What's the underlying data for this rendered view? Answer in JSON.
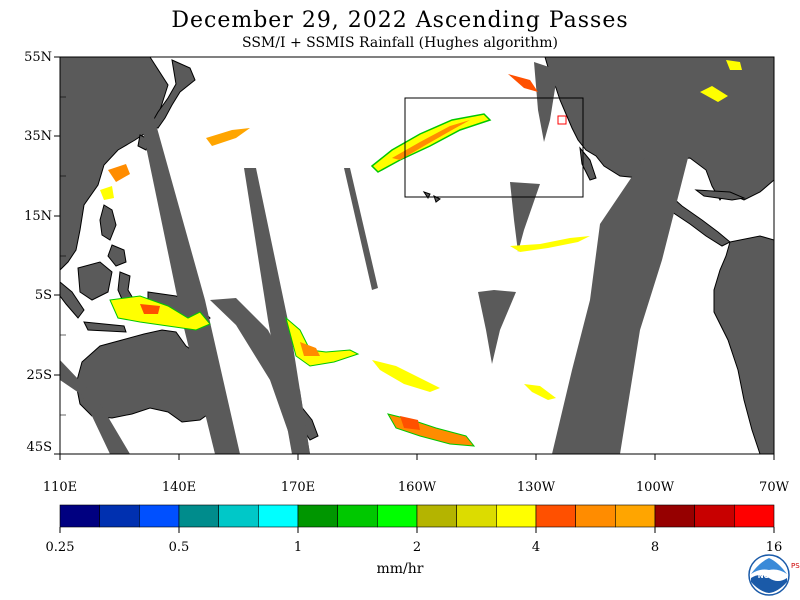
{
  "title": "December 29, 2022  Ascending Passes",
  "subtitle": "SSM/I + SSMIS Rainfall (Hughes algorithm)",
  "lat_labels": [
    "55N",
    "35N",
    "15N",
    "5S",
    "25S",
    "45S"
  ],
  "lon_labels": [
    "110E",
    "140E",
    "170E",
    "160W",
    "130W",
    "100W",
    "70W"
  ],
  "colorbar": {
    "colors": [
      "#000080",
      "#0030b0",
      "#0050ff",
      "#008c8c",
      "#00c8c8",
      "#00ffff",
      "#009600",
      "#00c800",
      "#00ff00",
      "#b4b400",
      "#dcdc00",
      "#ffff00",
      "#ff5000",
      "#ff8c00",
      "#ffa500",
      "#960000",
      "#c80000",
      "#ff0000"
    ],
    "tick_labels": [
      "0.25",
      "0.5",
      "1",
      "2",
      "4",
      "8",
      "16"
    ],
    "units": "mm/hr"
  },
  "colors": {
    "land": "#5a5a5a",
    "no_data": "#5a5a5a",
    "ocean": "#ffffff",
    "coast": "#000000"
  },
  "logo": {
    "text": "NOAA",
    "side_text": "PSL"
  },
  "map_elements": {
    "highlight_box": "northeast-pacific-atmospheric-river",
    "rain_areas": [
      "atmospheric-river",
      "western-pacific",
      "south-pacific",
      "itcz"
    ]
  }
}
